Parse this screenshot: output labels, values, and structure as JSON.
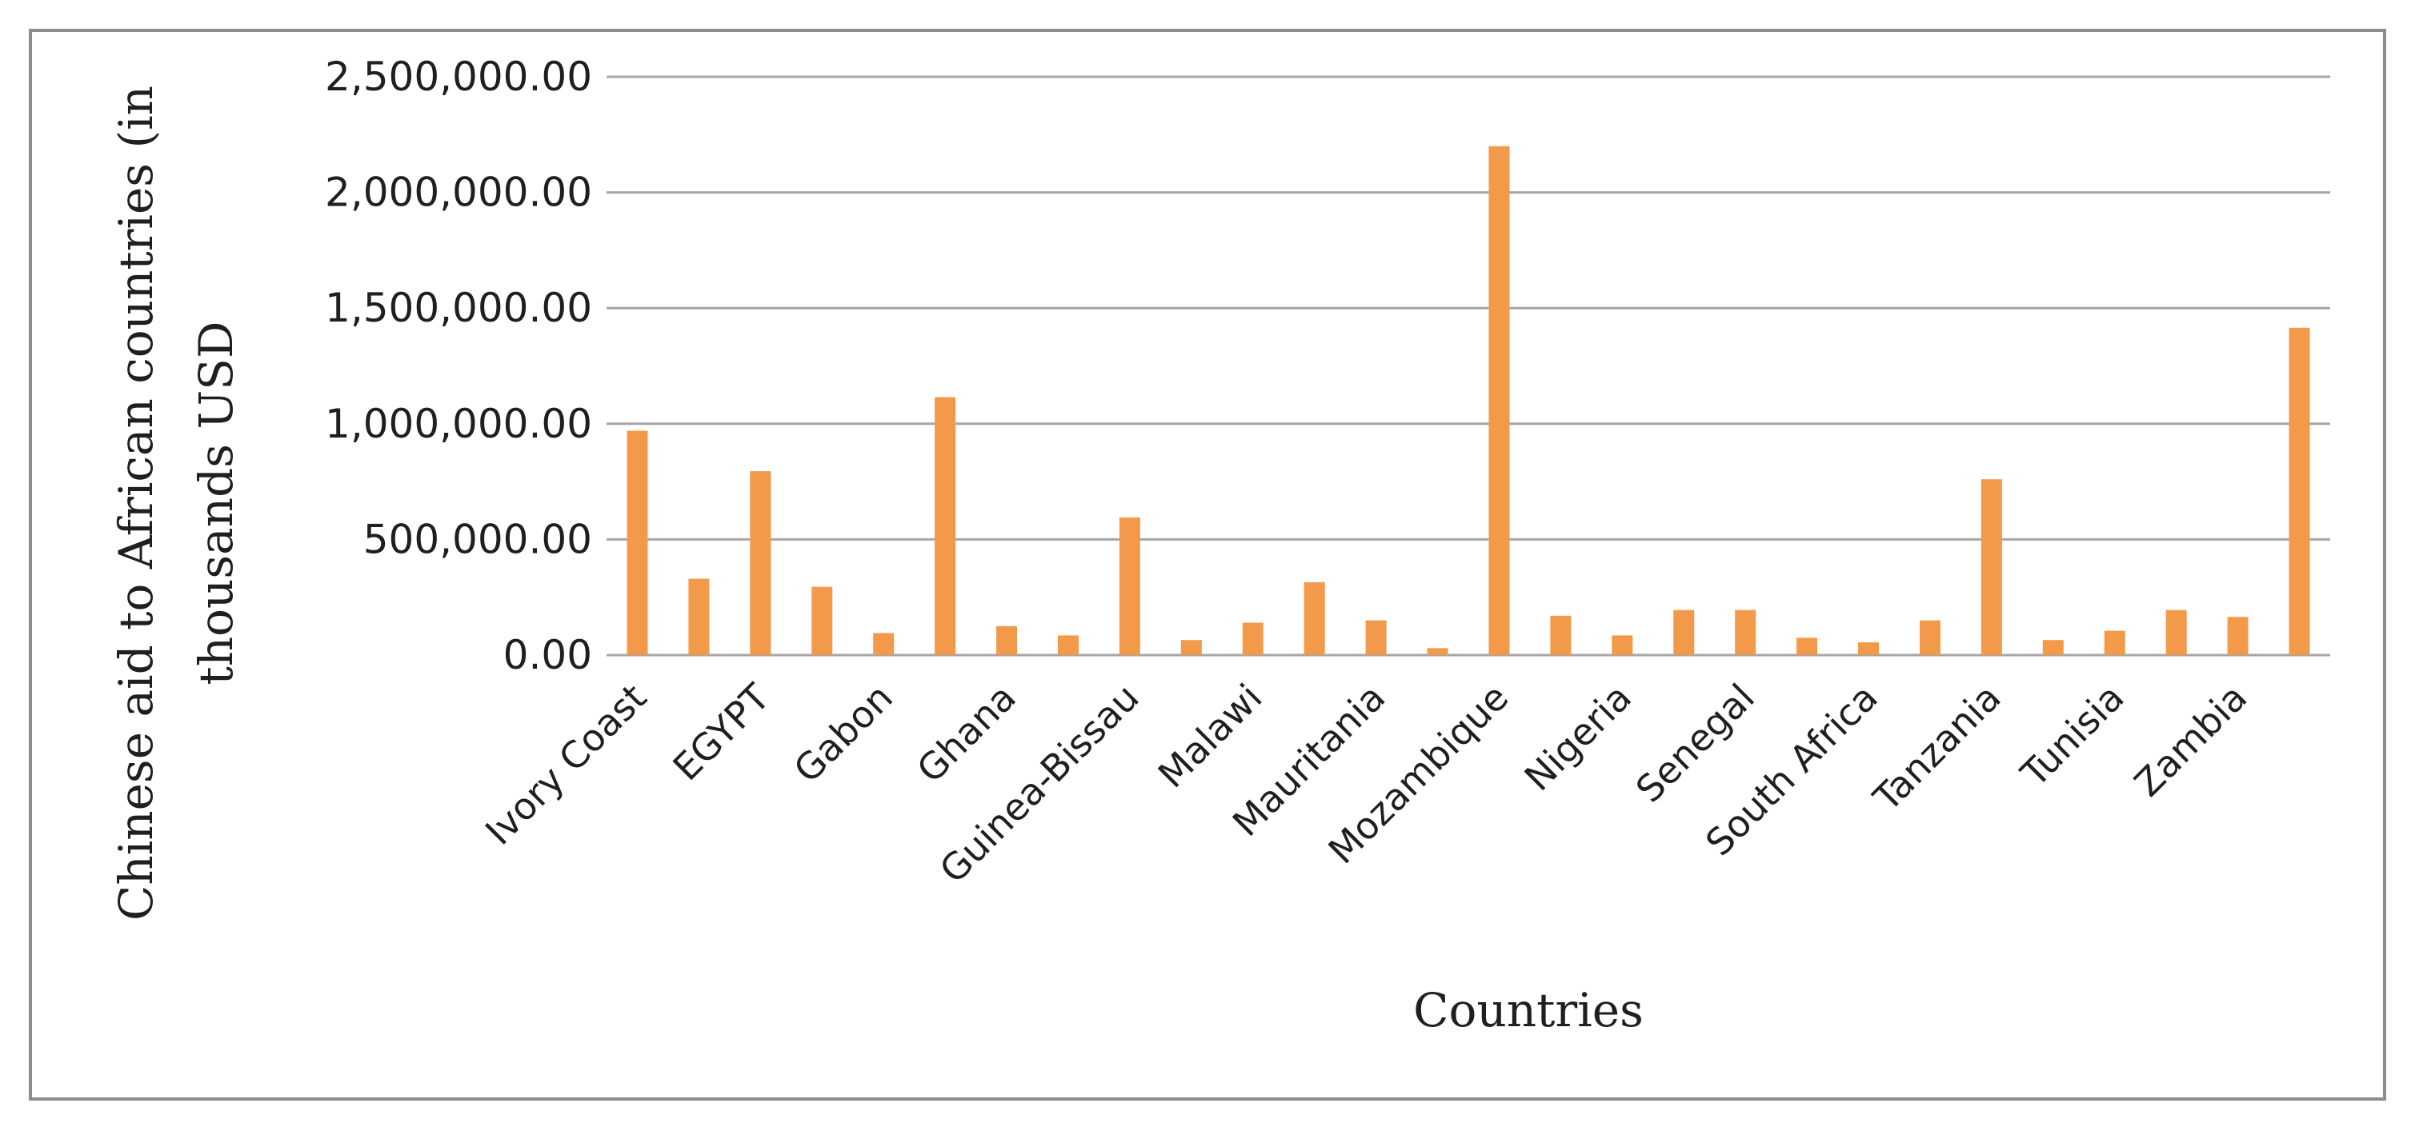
{
  "chart_data": {
    "type": "bar",
    "title": "",
    "xlabel": "Countries",
    "ylabel_lines": [
      "Chinese aid to African countries (in",
      "thousands USD"
    ],
    "ylim": [
      0,
      2500000
    ],
    "yticks": [
      0,
      500000,
      1000000,
      1500000,
      2000000,
      2500000
    ],
    "ytick_labels": [
      "0.00",
      "500,000.00",
      "1,000,000.00",
      "1,500,000.00",
      "2,000,000.00",
      "2,500,000.00"
    ],
    "grid": true,
    "bar_color": "#f39a4a",
    "visible_x_labels": [
      "Ivory Coast",
      "EGYPT",
      "Gabon",
      "Ghana",
      "Guinea-Bissau",
      "Malawi",
      "Mauritania",
      "Mozambique",
      "Nigeria",
      "Senegal",
      "South Africa",
      "Tanzania",
      "Tunisia",
      "Zambia"
    ],
    "values": [
      970000,
      330000,
      795000,
      295000,
      95000,
      1115000,
      125000,
      85000,
      595000,
      65000,
      140000,
      315000,
      150000,
      30000,
      2200000,
      170000,
      85000,
      195000,
      195000,
      75000,
      55000,
      150000,
      760000,
      65000,
      105000,
      195000,
      165000,
      1415000
    ]
  }
}
